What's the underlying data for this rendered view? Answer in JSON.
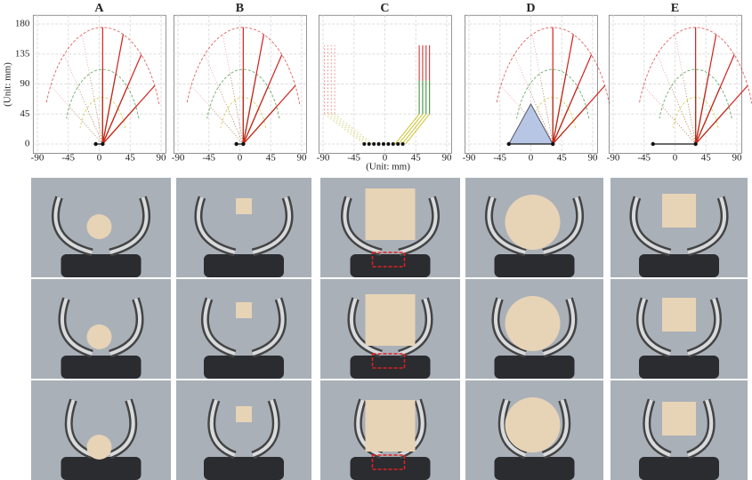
{
  "panels": [
    {
      "label": "A"
    },
    {
      "label": "B"
    },
    {
      "label": "C"
    },
    {
      "label": "D"
    },
    {
      "label": "E"
    }
  ],
  "xticks": [
    -90,
    -45,
    0,
    45,
    90
  ],
  "yticks": [
    0,
    45,
    90,
    135,
    180
  ],
  "ylabel": "(Unit: mm)",
  "xlabel": "(Unit: mm)"
}
